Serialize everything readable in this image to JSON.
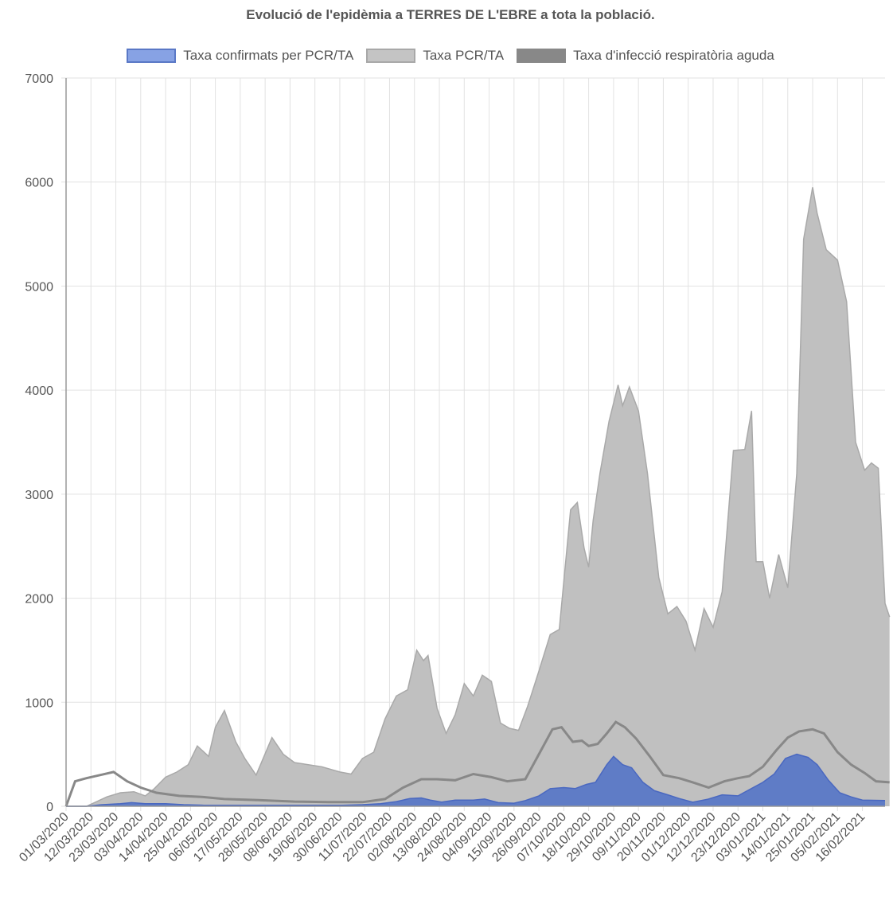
{
  "chart_data": {
    "type": "area",
    "title": "Evolució de l'epidèmia a TERRES DE L'EBRE a tota la població.",
    "xlabel": "",
    "ylabel": "",
    "ylim": [
      0,
      7000
    ],
    "y_ticks": [
      "0",
      "1000",
      "2000",
      "3000",
      "4000",
      "5000",
      "6000",
      "7000"
    ],
    "x_tick_labels": [
      "01/03/2020",
      "12/03/2020",
      "23/03/2020",
      "03/04/2020",
      "14/04/2020",
      "25/04/2020",
      "06/05/2020",
      "17/05/2020",
      "28/05/2020",
      "08/06/2020",
      "19/06/2020",
      "30/06/2020",
      "11/07/2020",
      "22/07/2020",
      "02/08/2020",
      "13/08/2020",
      "24/08/2020",
      "04/09/2020",
      "15/09/2020",
      "26/09/2020",
      "07/10/2020",
      "18/10/2020",
      "29/10/2020",
      "09/11/2020",
      "20/11/2020",
      "01/12/2020",
      "12/12/2020",
      "23/12/2020",
      "03/01/2021",
      "14/01/2021",
      "25/01/2021",
      "05/02/2021",
      "16/02/2021"
    ],
    "x_start": "01/03/2020",
    "x_end": "26/02/2021",
    "grid": true,
    "legend_position": "top",
    "series": [
      {
        "name": "Taxa confirmats per PCR/TA",
        "color": "#5A78C6",
        "points": [
          [
            "01/03/2020",
            0
          ],
          [
            "10/03/2020",
            0
          ],
          [
            "17/03/2020",
            15
          ],
          [
            "25/03/2020",
            25
          ],
          [
            "30/03/2020",
            35
          ],
          [
            "05/04/2020",
            25
          ],
          [
            "14/04/2020",
            25
          ],
          [
            "22/04/2020",
            15
          ],
          [
            "01/05/2020",
            10
          ],
          [
            "01/06/2020",
            10
          ],
          [
            "01/07/2020",
            10
          ],
          [
            "10/07/2020",
            15
          ],
          [
            "18/07/2020",
            25
          ],
          [
            "25/07/2020",
            45
          ],
          [
            "31/07/2020",
            75
          ],
          [
            "05/08/2020",
            80
          ],
          [
            "09/08/2020",
            60
          ],
          [
            "14/08/2020",
            40
          ],
          [
            "20/08/2020",
            60
          ],
          [
            "28/08/2020",
            60
          ],
          [
            "02/09/2020",
            70
          ],
          [
            "08/09/2020",
            35
          ],
          [
            "15/09/2020",
            30
          ],
          [
            "20/09/2020",
            55
          ],
          [
            "26/09/2020",
            100
          ],
          [
            "01/10/2020",
            170
          ],
          [
            "07/10/2020",
            180
          ],
          [
            "12/10/2020",
            170
          ],
          [
            "17/10/2020",
            210
          ],
          [
            "21/10/2020",
            230
          ],
          [
            "26/10/2020",
            400
          ],
          [
            "29/10/2020",
            480
          ],
          [
            "02/11/2020",
            400
          ],
          [
            "06/11/2020",
            370
          ],
          [
            "11/11/2020",
            230
          ],
          [
            "16/11/2020",
            150
          ],
          [
            "22/11/2020",
            110
          ],
          [
            "27/11/2020",
            75
          ],
          [
            "03/12/2020",
            40
          ],
          [
            "10/12/2020",
            70
          ],
          [
            "16/12/2020",
            110
          ],
          [
            "23/12/2020",
            100
          ],
          [
            "28/12/2020",
            160
          ],
          [
            "03/01/2021",
            230
          ],
          [
            "08/01/2021",
            310
          ],
          [
            "13/01/2021",
            460
          ],
          [
            "18/01/2021",
            500
          ],
          [
            "23/01/2021",
            470
          ],
          [
            "27/01/2021",
            400
          ],
          [
            "01/02/2021",
            250
          ],
          [
            "06/02/2021",
            130
          ],
          [
            "11/02/2021",
            90
          ],
          [
            "16/02/2021",
            60
          ],
          [
            "26/02/2021",
            55
          ]
        ]
      },
      {
        "name": "Taxa PCR/TA",
        "color": "#C0C0C0",
        "points": [
          [
            "01/03/2020",
            0
          ],
          [
            "10/03/2020",
            0
          ],
          [
            "14/03/2020",
            40
          ],
          [
            "19/03/2020",
            90
          ],
          [
            "25/03/2020",
            130
          ],
          [
            "31/03/2020",
            140
          ],
          [
            "05/04/2020",
            100
          ],
          [
            "09/04/2020",
            170
          ],
          [
            "14/04/2020",
            280
          ],
          [
            "19/04/2020",
            330
          ],
          [
            "24/04/2020",
            400
          ],
          [
            "28/04/2020",
            580
          ],
          [
            "03/05/2020",
            480
          ],
          [
            "06/05/2020",
            760
          ],
          [
            "10/05/2020",
            920
          ],
          [
            "15/05/2020",
            620
          ],
          [
            "19/05/2020",
            460
          ],
          [
            "24/05/2020",
            300
          ],
          [
            "31/05/2020",
            660
          ],
          [
            "05/06/2020",
            500
          ],
          [
            "10/06/2020",
            420
          ],
          [
            "16/06/2020",
            400
          ],
          [
            "22/06/2020",
            380
          ],
          [
            "30/06/2020",
            330
          ],
          [
            "05/07/2020",
            310
          ],
          [
            "10/07/2020",
            460
          ],
          [
            "15/07/2020",
            520
          ],
          [
            "20/07/2020",
            840
          ],
          [
            "25/07/2020",
            1060
          ],
          [
            "30/07/2020",
            1120
          ],
          [
            "03/08/2020",
            1500
          ],
          [
            "06/08/2020",
            1400
          ],
          [
            "08/08/2020",
            1450
          ],
          [
            "12/08/2020",
            940
          ],
          [
            "16/08/2020",
            700
          ],
          [
            "20/08/2020",
            880
          ],
          [
            "24/08/2020",
            1180
          ],
          [
            "28/08/2020",
            1060
          ],
          [
            "01/09/2020",
            1260
          ],
          [
            "05/09/2020",
            1200
          ],
          [
            "09/09/2020",
            800
          ],
          [
            "13/09/2020",
            750
          ],
          [
            "17/09/2020",
            730
          ],
          [
            "21/09/2020",
            960
          ],
          [
            "26/09/2020",
            1300
          ],
          [
            "01/10/2020",
            1650
          ],
          [
            "05/10/2020",
            1700
          ],
          [
            "10/10/2020",
            2850
          ],
          [
            "13/10/2020",
            2920
          ],
          [
            "16/10/2020",
            2480
          ],
          [
            "18/10/2020",
            2300
          ],
          [
            "20/10/2020",
            2750
          ],
          [
            "23/10/2020",
            3200
          ],
          [
            "27/10/2020",
            3700
          ],
          [
            "31/10/2020",
            4050
          ],
          [
            "02/11/2020",
            3850
          ],
          [
            "05/11/2020",
            4030
          ],
          [
            "09/11/2020",
            3800
          ],
          [
            "13/11/2020",
            3200
          ],
          [
            "18/11/2020",
            2200
          ],
          [
            "22/11/2020",
            1850
          ],
          [
            "26/11/2020",
            1920
          ],
          [
            "30/11/2020",
            1780
          ],
          [
            "04/12/2020",
            1500
          ],
          [
            "08/12/2020",
            1900
          ],
          [
            "12/12/2020",
            1720
          ],
          [
            "16/12/2020",
            2060
          ],
          [
            "21/12/2020",
            3420
          ],
          [
            "26/12/2020",
            3430
          ],
          [
            "29/12/2020",
            3800
          ],
          [
            "31/12/2020",
            2350
          ],
          [
            "03/01/2021",
            2350
          ],
          [
            "06/01/2021",
            2000
          ],
          [
            "10/01/2021",
            2420
          ],
          [
            "14/01/2021",
            2100
          ],
          [
            "18/01/2021",
            3200
          ],
          [
            "21/01/2021",
            5450
          ],
          [
            "25/01/2021",
            5950
          ],
          [
            "27/01/2021",
            5700
          ],
          [
            "31/01/2021",
            5350
          ],
          [
            "05/02/2021",
            5250
          ],
          [
            "09/02/2021",
            4850
          ],
          [
            "13/02/2021",
            3500
          ],
          [
            "17/02/2021",
            3230
          ],
          [
            "20/02/2021",
            3300
          ],
          [
            "23/02/2021",
            3250
          ],
          [
            "26/02/2021",
            1950
          ],
          [
            "28/02/2021",
            1820
          ]
        ]
      },
      {
        "name": "Taxa d'infecció respiratòria aguda",
        "color": "#888888",
        "points": [
          [
            "01/03/2020",
            0
          ],
          [
            "05/03/2020",
            240
          ],
          [
            "10/03/2020",
            270
          ],
          [
            "16/03/2020",
            300
          ],
          [
            "22/03/2020",
            330
          ],
          [
            "28/03/2020",
            240
          ],
          [
            "03/04/2020",
            180
          ],
          [
            "10/04/2020",
            130
          ],
          [
            "20/04/2020",
            100
          ],
          [
            "30/04/2020",
            90
          ],
          [
            "10/05/2020",
            70
          ],
          [
            "25/05/2020",
            60
          ],
          [
            "10/06/2020",
            45
          ],
          [
            "25/06/2020",
            40
          ],
          [
            "10/07/2020",
            40
          ],
          [
            "20/07/2020",
            70
          ],
          [
            "28/07/2020",
            180
          ],
          [
            "05/08/2020",
            260
          ],
          [
            "12/08/2020",
            260
          ],
          [
            "20/08/2020",
            250
          ],
          [
            "28/08/2020",
            310
          ],
          [
            "05/09/2020",
            280
          ],
          [
            "12/09/2020",
            240
          ],
          [
            "20/09/2020",
            260
          ],
          [
            "26/09/2020",
            500
          ],
          [
            "02/10/2020",
            740
          ],
          [
            "06/10/2020",
            760
          ],
          [
            "11/10/2020",
            620
          ],
          [
            "15/10/2020",
            630
          ],
          [
            "18/10/2020",
            580
          ],
          [
            "22/10/2020",
            600
          ],
          [
            "26/10/2020",
            700
          ],
          [
            "30/10/2020",
            810
          ],
          [
            "03/11/2020",
            760
          ],
          [
            "08/11/2020",
            650
          ],
          [
            "14/11/2020",
            480
          ],
          [
            "20/11/2020",
            300
          ],
          [
            "27/11/2020",
            270
          ],
          [
            "03/12/2020",
            230
          ],
          [
            "10/12/2020",
            180
          ],
          [
            "17/12/2020",
            240
          ],
          [
            "23/12/2020",
            270
          ],
          [
            "28/12/2020",
            290
          ],
          [
            "03/01/2021",
            380
          ],
          [
            "09/01/2021",
            540
          ],
          [
            "14/01/2021",
            660
          ],
          [
            "19/01/2021",
            720
          ],
          [
            "25/01/2021",
            740
          ],
          [
            "30/01/2021",
            700
          ],
          [
            "05/02/2021",
            520
          ],
          [
            "11/02/2021",
            400
          ],
          [
            "17/02/2021",
            320
          ],
          [
            "22/02/2021",
            240
          ],
          [
            "28/02/2021",
            230
          ]
        ]
      }
    ]
  }
}
